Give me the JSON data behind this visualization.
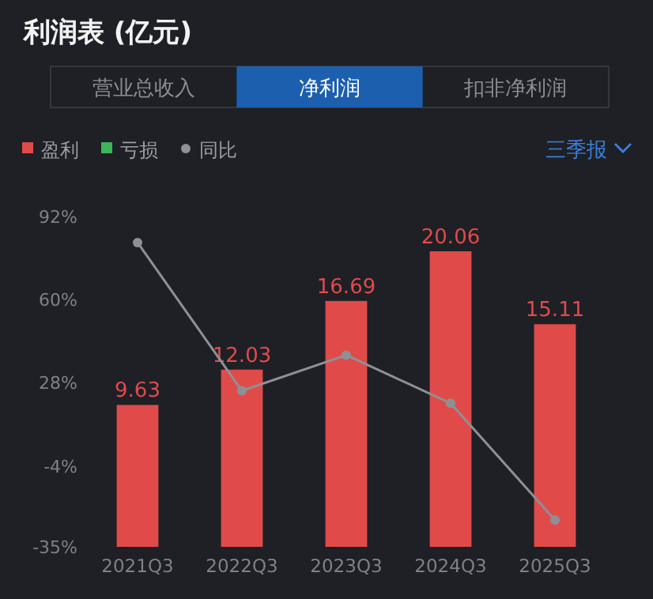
{
  "chart_data": {
    "type": "bar",
    "title": "利润表 (亿元)",
    "annotations": [
      "营业总收入",
      "净利润",
      "扣非净利润",
      "三季报"
    ],
    "categories": [
      "2021Q3",
      "2022Q3",
      "2023Q3",
      "2024Q3",
      "2025Q3"
    ],
    "series": [
      {
        "name": "盈利",
        "color": "#e04b4a",
        "axis": "y2",
        "values": [
          9.63,
          12.03,
          16.69,
          20.06,
          15.11
        ],
        "value_labels": [
          "9.63",
          "12.03",
          "16.69",
          "20.06",
          "15.11"
        ]
      },
      {
        "name": "亏损",
        "color": "#3cb45a",
        "axis": "y2",
        "values": [
          null,
          null,
          null,
          null,
          null
        ]
      },
      {
        "name": "同比",
        "type": "line",
        "color": "#8d9096",
        "values": [
          82,
          25,
          38.7,
          20.2,
          -24.7
        ]
      }
    ],
    "ylim": [
      -35,
      92
    ],
    "yticks": [
      {
        "value": 92,
        "label": "92%"
      },
      {
        "value": 60,
        "label": "60%"
      },
      {
        "value": 28,
        "label": "28%"
      },
      {
        "value": -4,
        "label": "-4%"
      },
      {
        "value": -35,
        "label": "-35%"
      }
    ],
    "marker": "circle",
    "legend": "top left",
    "grid": false
  }
}
